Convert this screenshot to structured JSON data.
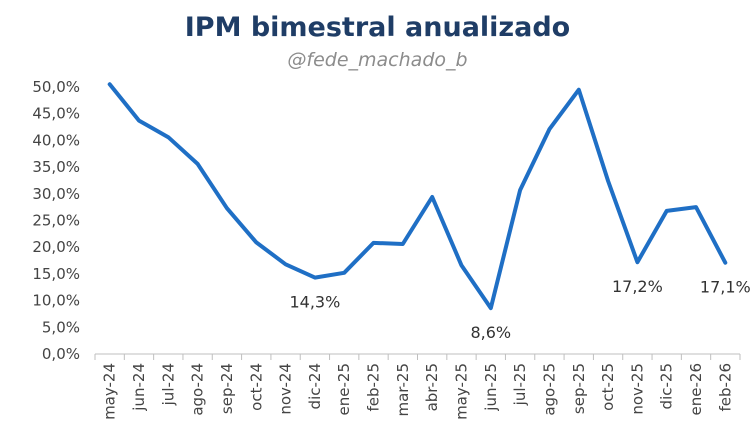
{
  "chart_data": {
    "type": "line",
    "title": "IPM bimestral anualizado",
    "subtitle": "@fede_machado_b",
    "categories": [
      "may-24",
      "jun-24",
      "jul-24",
      "ago-24",
      "sep-24",
      "oct-24",
      "nov-24",
      "dic-24",
      "ene-25",
      "feb-25",
      "mar-25",
      "abr-25",
      "may-25",
      "jun-25",
      "jul-25",
      "ago-25",
      "sep-25",
      "oct-25",
      "nov-25",
      "dic-25",
      "ene-26",
      "feb-26"
    ],
    "series": [
      {
        "values": [
          50.5,
          43.7,
          40.6,
          35.6,
          27.3,
          20.9,
          16.8,
          14.3,
          15.2,
          20.8,
          20.6,
          29.4,
          16.6,
          8.6,
          30.7,
          42.1,
          49.5,
          32.4,
          17.2,
          26.8,
          27.5,
          17.1
        ],
        "color": "#1f6fc5"
      }
    ],
    "data_labels": [
      {
        "index": 7,
        "text": "14,3%"
      },
      {
        "index": 13,
        "text": "8,6%"
      },
      {
        "index": 18,
        "text": "17,2%"
      },
      {
        "index": 21,
        "text": "17,1%"
      }
    ],
    "y_ticks": [
      "0,0%",
      "5,0%",
      "10,0%",
      "15,0%",
      "20,0%",
      "25,0%",
      "30,0%",
      "35,0%",
      "40,0%",
      "45,0%",
      "50,0%"
    ],
    "ylim": [
      0,
      50
    ],
    "y_step": 5,
    "grid": false,
    "legend": "none"
  }
}
